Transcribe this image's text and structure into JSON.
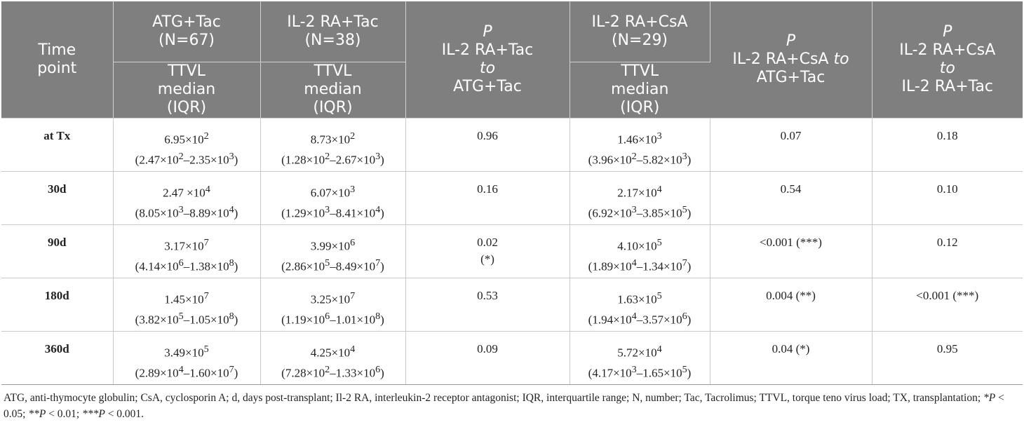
{
  "header": {
    "time_point": "Time point",
    "atg_tac": "ATG+Tac (N=67)",
    "il2_tac": "IL-2 RA+Tac (N=38)",
    "p1_p": "P",
    "p1_text": "IL-2 RA+Tac",
    "p1_to": "to",
    "p1_ref": "ATG+Tac",
    "il2_csa": "IL-2 RA+CsA (N=29)",
    "p2_p": "P",
    "p2_text": "IL-2 RA+CsA",
    "p2_to": "to",
    "p2_ref": "ATG+Tac",
    "p3_p": "P",
    "p3_text": "IL-2 RA+CsA",
    "p3_to": "to",
    "p3_ref": "IL-2 RA+Tac",
    "ttvl_median": "TTVL median (IQR)"
  },
  "rows": [
    {
      "time": "at Tx",
      "atg": {
        "m": "6.95×10",
        "me": "2",
        "lo": "2.47×10",
        "loe": "2",
        "hi": "2.35×10",
        "hie": "3"
      },
      "il2tac": {
        "m": "8.73×10",
        "me": "2",
        "lo": "1.28×10",
        "loe": "2",
        "hi": "2.67×10",
        "hie": "3"
      },
      "p1": "0.96",
      "p1_sig": "",
      "il2csa": {
        "m": "1.46×10",
        "me": "3",
        "lo": "3.96×10",
        "loe": "2",
        "hi": "5.82×10",
        "hie": "3"
      },
      "p2": "0.07",
      "p3": "0.18"
    },
    {
      "time": "30d",
      "atg": {
        "m": "2.47 ×10",
        "me": "4",
        "lo": "8.05×10",
        "loe": "3",
        "hi": "8.89×10",
        "hie": "4"
      },
      "il2tac": {
        "m": "6.07×10",
        "me": "3",
        "lo": "1.29×10",
        "loe": "3",
        "hi": "8.41×10",
        "hie": "4"
      },
      "p1": "0.16",
      "p1_sig": "",
      "il2csa": {
        "m": "2.17×10",
        "me": "4",
        "lo": "6.92×10",
        "loe": "3",
        "hi": "3.85×10",
        "hie": "5"
      },
      "p2": "0.54",
      "p3": "0.10"
    },
    {
      "time": "90d",
      "atg": {
        "m": "3.17×10",
        "me": "7",
        "lo": "4.14×10",
        "loe": "6",
        "hi": "1.38×10",
        "hie": "8"
      },
      "il2tac": {
        "m": "3.99×10",
        "me": "6",
        "lo": "2.86×10",
        "loe": "5",
        "hi": "8.49×10",
        "hie": "7"
      },
      "p1": "0.02",
      "p1_sig": "(*)",
      "il2csa": {
        "m": "4.10×10",
        "me": "5",
        "lo": "1.89×10",
        "loe": "4",
        "hi": "1.34×10",
        "hie": "7"
      },
      "p2": "<0.001 (***)",
      "p3": "0.12"
    },
    {
      "time": "180d",
      "atg": {
        "m": "1.45×10",
        "me": "7",
        "lo": "3.82×10",
        "loe": "5",
        "hi": "1.05×10",
        "hie": "8"
      },
      "il2tac": {
        "m": "3.25×10",
        "me": "7",
        "lo": "1.19×10",
        "loe": "6",
        "hi": "1.01×10",
        "hie": "8"
      },
      "p1": "0.53",
      "p1_sig": "",
      "il2csa": {
        "m": "1.63×10",
        "me": "5",
        "lo": "1.94×10",
        "loe": "4",
        "hi": "3.57×10",
        "hie": "6"
      },
      "p2": "0.004 (**)",
      "p3": "<0.001 (***)"
    },
    {
      "time": "360d",
      "atg": {
        "m": "3.49×10",
        "me": "5",
        "lo": "2.89×10",
        "loe": "4",
        "hi": "1.60×10",
        "hie": "7"
      },
      "il2tac": {
        "m": "4.25×10",
        "me": "4",
        "lo": "7.28×10",
        "loe": "2",
        "hi": "1.33×10",
        "hie": "6"
      },
      "p1": "0.09",
      "p1_sig": "",
      "il2csa": {
        "m": "5.72×10",
        "me": "4",
        "lo": "4.17×10",
        "loe": "3",
        "hi": "1.65×10",
        "hie": "5"
      },
      "p2": "0.04 (*)",
      "p3": "0.95"
    }
  ],
  "footnote": {
    "text": "ATG, anti-thymocyte globulin; CsA, cyclosporin A; d, days post-transplant; Il-2 RA, interleukin-2 receptor antagonist; IQR, interquartile range; N, number; Tac, Tacrolimus; TTVL, torque teno virus load; TX, transplantation; ",
    "p1_sym": "*P",
    "p1_rest": " < 0.05; ",
    "p2_sym": "**P",
    "p2_rest": " < 0.01; ",
    "p3_sym": "***P",
    "p3_rest": " < 0.001."
  },
  "colors": {
    "header_bg": "#7f7f7f",
    "header_text": "#ffffff",
    "body_text": "#222222",
    "grid_line": "#c9c9c9"
  }
}
